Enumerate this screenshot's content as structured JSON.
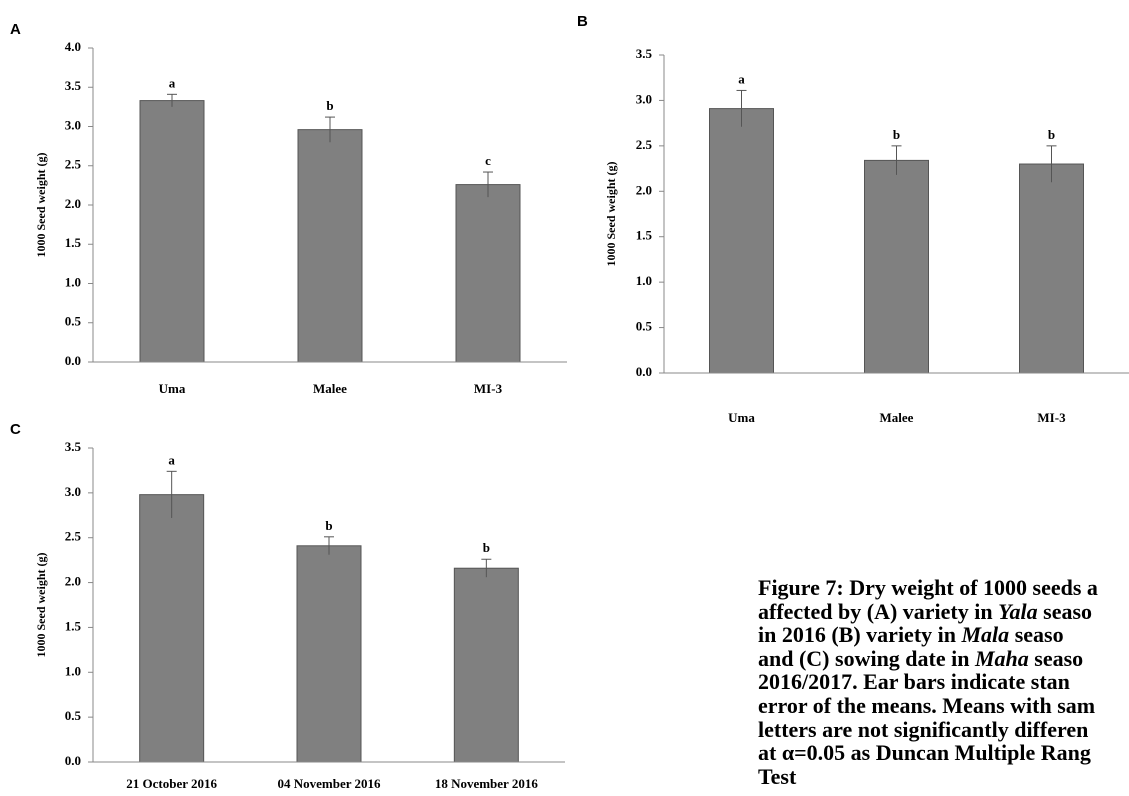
{
  "chart_data": [
    {
      "type": "bar",
      "panel": "A",
      "ylabel": "1000 Seed weight (g)",
      "categories": [
        "Uma",
        "Malee",
        "MI-3"
      ],
      "values": [
        3.33,
        2.96,
        2.26
      ],
      "errors": [
        0.08,
        0.16,
        0.16
      ],
      "annotations": [
        "a",
        "b",
        "c"
      ],
      "color": "#808080",
      "ylim": [
        0,
        4
      ],
      "yticks": [
        {
          "value": 0,
          "label": "0.0"
        },
        {
          "value": 0.5,
          "label": "0.5"
        },
        {
          "value": 1,
          "label": "1.0"
        },
        {
          "value": 1.5,
          "label": "1.5"
        },
        {
          "value": 2,
          "label": "2.0"
        },
        {
          "value": 2.5,
          "label": "2.5"
        },
        {
          "value": 3,
          "label": "3.0"
        },
        {
          "value": 3.5,
          "label": "3.5"
        },
        {
          "value": 4,
          "label": "4.0"
        }
      ]
    },
    {
      "type": "bar",
      "panel": "B",
      "ylabel": "1000 Seed weight (g)",
      "categories": [
        "Uma",
        "Malee",
        "MI-3"
      ],
      "values": [
        2.91,
        2.34,
        2.3
      ],
      "errors": [
        0.2,
        0.16,
        0.2
      ],
      "annotations": [
        "a",
        "b",
        "b"
      ],
      "color": "#808080",
      "ylim": [
        0,
        3.5
      ],
      "yticks": [
        {
          "value": 0,
          "label": "0.0"
        },
        {
          "value": 0.5,
          "label": "0.5"
        },
        {
          "value": 1,
          "label": "1.0"
        },
        {
          "value": 1.5,
          "label": "1.5"
        },
        {
          "value": 2,
          "label": "2.0"
        },
        {
          "value": 2.5,
          "label": "2.5"
        },
        {
          "value": 3,
          "label": "3.0"
        },
        {
          "value": 3.5,
          "label": "3.5"
        }
      ]
    },
    {
      "type": "bar",
      "panel": "C",
      "ylabel": "1000 Seed weight (g)",
      "categories": [
        "21 October 2016",
        "04 November 2016",
        "18 November 2016"
      ],
      "values": [
        2.98,
        2.41,
        2.16
      ],
      "errors": [
        0.26,
        0.1,
        0.1
      ],
      "annotations": [
        "a",
        "b",
        "b"
      ],
      "color": "#808080",
      "ylim": [
        0,
        3.5
      ],
      "yticks": [
        {
          "value": 0,
          "label": "0.0"
        },
        {
          "value": 0.5,
          "label": "0.5"
        },
        {
          "value": 1,
          "label": "1.0"
        },
        {
          "value": 1.5,
          "label": "1.5"
        },
        {
          "value": 2,
          "label": "2.0"
        },
        {
          "value": 2.5,
          "label": "2.5"
        },
        {
          "value": 3,
          "label": "3.0"
        },
        {
          "value": 3.5,
          "label": "3.5"
        }
      ]
    }
  ],
  "caption": [
    [
      {
        "text": "Figure 7: Dry weight of 1000 seeds a"
      }
    ],
    [
      {
        "text": "affected by (A) variety in "
      },
      {
        "text": "Yala",
        "italic": true
      },
      {
        "text": " seaso"
      }
    ],
    [
      {
        "text": "in 2016 (B) variety in "
      },
      {
        "text": "Mala",
        "italic": true
      },
      {
        "text": " seaso"
      }
    ],
    [
      {
        "text": "and (C) sowing date in "
      },
      {
        "text": "Maha",
        "italic": true
      },
      {
        "text": " seaso"
      }
    ],
    [
      {
        "text": "2016/2017. Ear bars indicate stan"
      }
    ],
    [
      {
        "text": "error of the means. Means with sam"
      }
    ],
    [
      {
        "text": "letters are not significantly differen"
      }
    ],
    [
      {
        "text": "at α=0.05 as Duncan Multiple Rang"
      }
    ],
    [
      {
        "text": "Test"
      }
    ]
  ]
}
